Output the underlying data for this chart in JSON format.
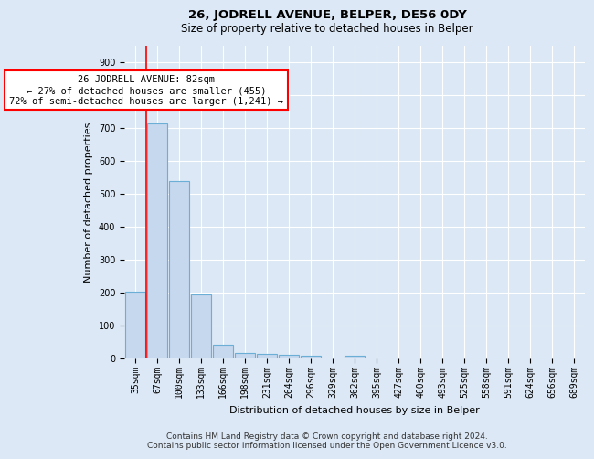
{
  "title_line1": "26, JODRELL AVENUE, BELPER, DE56 0DY",
  "title_line2": "Size of property relative to detached houses in Belper",
  "xlabel": "Distribution of detached houses by size in Belper",
  "ylabel": "Number of detached properties",
  "bar_color": "#c5d8ee",
  "bar_edge_color": "#6baed6",
  "bar_categories": [
    "35sqm",
    "67sqm",
    "100sqm",
    "133sqm",
    "166sqm",
    "198sqm",
    "231sqm",
    "264sqm",
    "296sqm",
    "329sqm",
    "362sqm",
    "395sqm",
    "427sqm",
    "460sqm",
    "493sqm",
    "525sqm",
    "558sqm",
    "591sqm",
    "624sqm",
    "656sqm",
    "689sqm"
  ],
  "bar_values": [
    203,
    714,
    537,
    193,
    42,
    17,
    15,
    11,
    8,
    0,
    8,
    0,
    0,
    0,
    0,
    0,
    0,
    0,
    0,
    0,
    0
  ],
  "ylim": [
    0,
    950
  ],
  "yticks": [
    0,
    100,
    200,
    300,
    400,
    500,
    600,
    700,
    800,
    900
  ],
  "red_line_x": 0.5,
  "annotation_text": "26 JODRELL AVENUE: 82sqm\n← 27% of detached houses are smaller (455)\n72% of semi-detached houses are larger (1,241) →",
  "annotation_box_color": "white",
  "annotation_box_edge_color": "red",
  "footer_line1": "Contains HM Land Registry data © Crown copyright and database right 2024.",
  "footer_line2": "Contains public sector information licensed under the Open Government Licence v3.0.",
  "background_color": "#dce8f5",
  "plot_bg_color": "#dce8f5",
  "grid_color": "white",
  "title_fontsize": 9.5,
  "subtitle_fontsize": 8.5,
  "axis_label_fontsize": 8,
  "tick_fontsize": 7,
  "annotation_fontsize": 7.5,
  "footer_fontsize": 6.5
}
